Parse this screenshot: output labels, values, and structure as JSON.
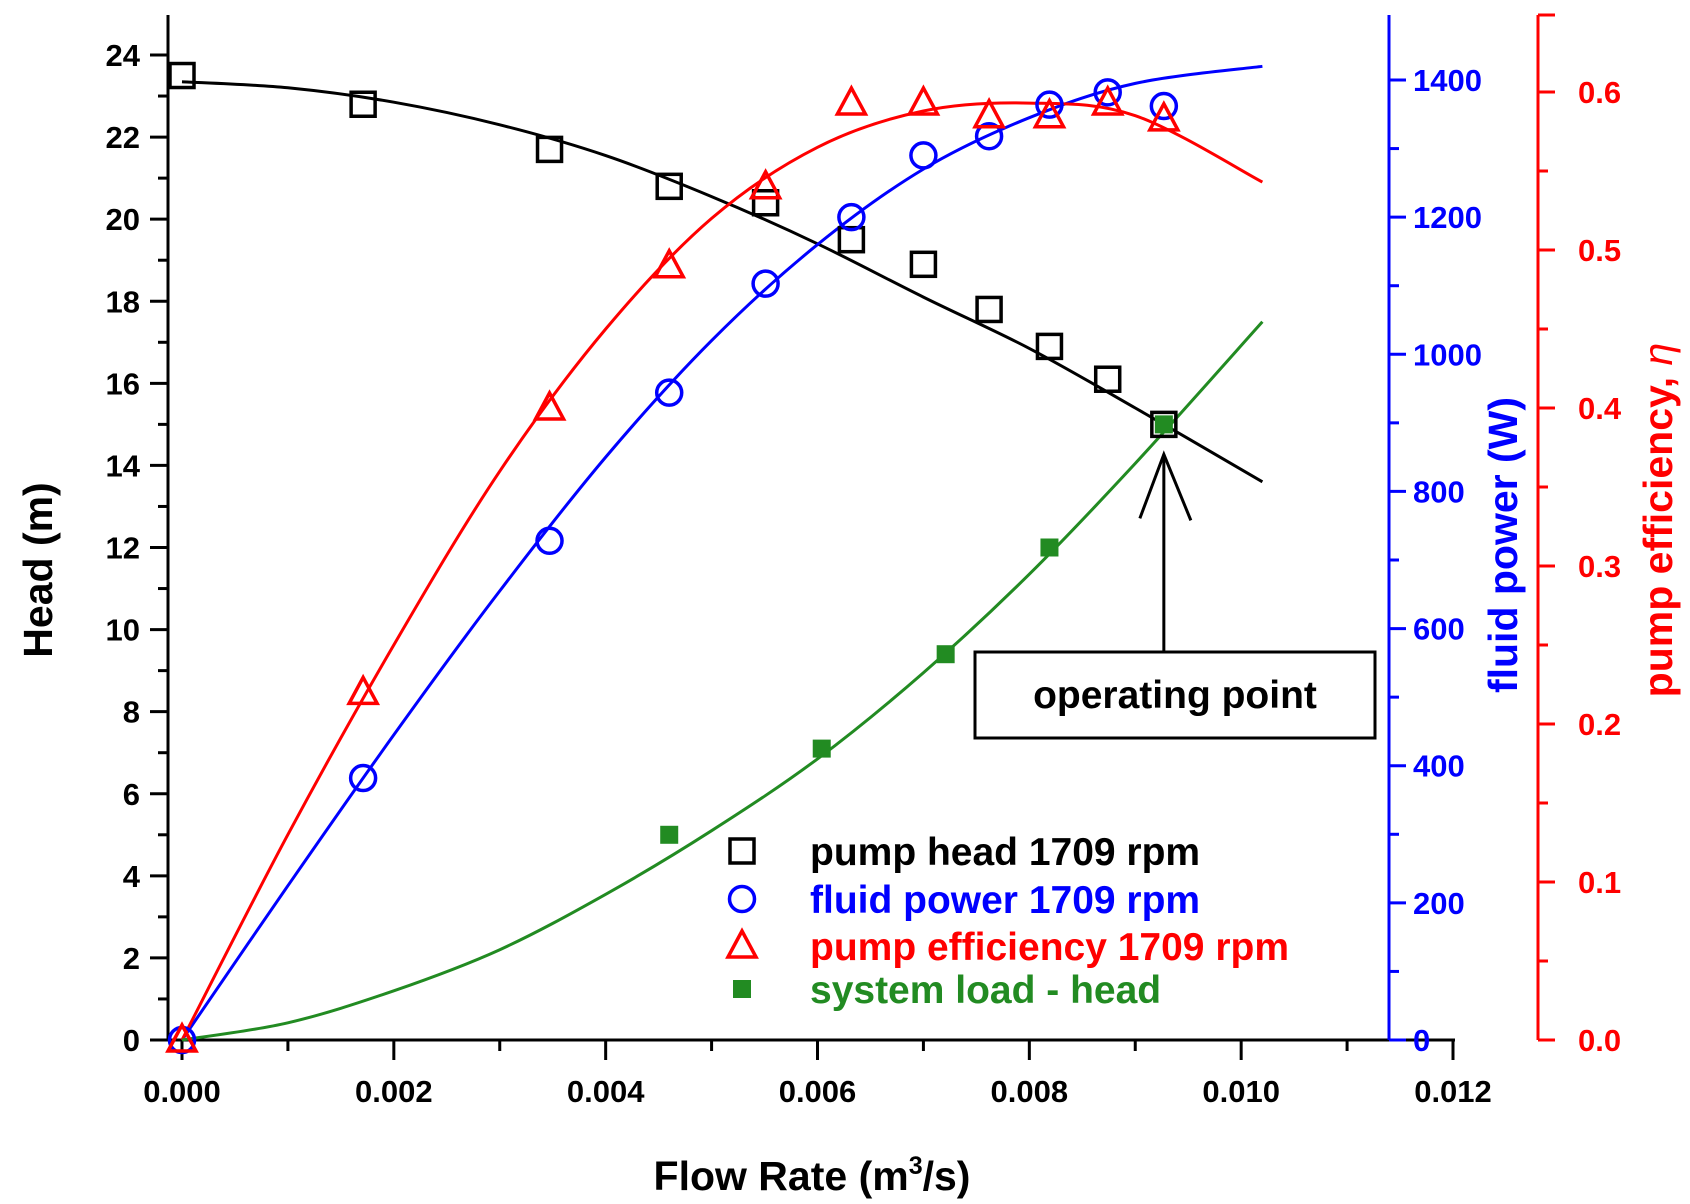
{
  "chart_data": {
    "type": "scatter",
    "xlabel": "Flow Rate (m³/s)",
    "xlabel_main": "Flow Rate (m",
    "xlabel_sup": "3",
    "xlabel_end": "/s)",
    "xlim": [
      0,
      0.012
    ],
    "x_ticks": [
      "0.000",
      "0.002",
      "0.004",
      "0.006",
      "0.008",
      "0.010",
      "0.012"
    ],
    "y_axes": [
      {
        "id": "head",
        "label": "Head (m)",
        "color": "#000000",
        "lim": [
          0,
          24
        ],
        "ticks": [
          "0",
          "2",
          "4",
          "6",
          "8",
          "10",
          "12",
          "14",
          "16",
          "18",
          "20",
          "22",
          "24"
        ]
      },
      {
        "id": "power",
        "label": "fluid power (W)",
        "color": "#0000ff",
        "lim": [
          0,
          1400
        ],
        "ticks": [
          "0",
          "200",
          "400",
          "600",
          "800",
          "1000",
          "1200",
          "1400"
        ]
      },
      {
        "id": "eta",
        "label": "pump efficiency, η",
        "label_main": "pump efficiency, ",
        "label_symbol": "η",
        "color": "#ff0000",
        "lim": [
          0,
          0.6
        ],
        "ticks": [
          "0.0",
          "0.1",
          "0.2",
          "0.3",
          "0.4",
          "0.5",
          "0.6"
        ]
      }
    ],
    "series": [
      {
        "name": "pump head 1709 rpm",
        "axis": "head",
        "marker": "open-square",
        "color": "#000000",
        "x": [
          0.0,
          0.00171,
          0.00347,
          0.0046,
          0.00551,
          0.00632,
          0.007,
          0.00762,
          0.00819,
          0.00874,
          0.00927
        ],
        "y": [
          23.5,
          22.8,
          21.7,
          20.8,
          20.4,
          19.5,
          18.9,
          17.8,
          16.9,
          16.1,
          15.0
        ],
        "fit_x": [
          0.0,
          0.001,
          0.002,
          0.003,
          0.004,
          0.005,
          0.006,
          0.007,
          0.008,
          0.009,
          0.0102
        ],
        "fit_y": [
          23.35,
          23.2,
          22.85,
          22.3,
          21.55,
          20.55,
          19.4,
          18.1,
          16.85,
          15.4,
          13.6
        ]
      },
      {
        "name": "fluid power 1709 rpm",
        "axis": "power",
        "marker": "open-circle",
        "color": "#0000ff",
        "x": [
          0.0,
          0.00171,
          0.00347,
          0.0046,
          0.00551,
          0.00632,
          0.007,
          0.00762,
          0.00819,
          0.00874,
          0.00927
        ],
        "y": [
          0,
          382,
          728,
          944,
          1103,
          1200,
          1290,
          1318,
          1364,
          1382,
          1362
        ],
        "fit_x": [
          0.0,
          0.001,
          0.002,
          0.003,
          0.004,
          0.005,
          0.006,
          0.007,
          0.008,
          0.009,
          0.0102
        ],
        "fit_y": [
          0,
          225,
          445,
          655,
          850,
          1020,
          1160,
          1270,
          1345,
          1395,
          1420
        ]
      },
      {
        "name": "pump efficiency 1709 rpm",
        "axis": "eta",
        "marker": "open-triangle",
        "color": "#ff0000",
        "x": [
          0.0,
          0.00171,
          0.00347,
          0.0046,
          0.00551,
          0.00632,
          0.007,
          0.00762,
          0.00819,
          0.00874,
          0.00927
        ],
        "y": [
          0.0,
          0.22,
          0.4,
          0.49,
          0.54,
          0.593,
          0.593,
          0.585,
          0.585,
          0.593,
          0.583
        ],
        "fit_x": [
          0.0,
          0.001,
          0.002,
          0.003,
          0.004,
          0.005,
          0.006,
          0.007,
          0.008,
          0.009,
          0.0102
        ],
        "fit_y": [
          0.0,
          0.13,
          0.25,
          0.36,
          0.45,
          0.52,
          0.565,
          0.588,
          0.593,
          0.585,
          0.543
        ]
      },
      {
        "name": "system load - head",
        "axis": "head",
        "marker": "filled-square",
        "color": "#228b22",
        "x": [
          0.0046,
          0.00604,
          0.00721,
          0.00819,
          0.00927
        ],
        "y": [
          5.0,
          7.1,
          9.4,
          12.0,
          15.0
        ],
        "fit_x": [
          0.0,
          0.001,
          0.002,
          0.003,
          0.004,
          0.005,
          0.006,
          0.007,
          0.008,
          0.009,
          0.0102
        ],
        "fit_y": [
          0.0,
          0.42,
          1.2,
          2.2,
          3.55,
          5.1,
          6.85,
          8.95,
          11.35,
          14.05,
          17.5
        ]
      }
    ],
    "legend": {
      "placement": "bottom-right",
      "entries": [
        "pump head 1709 rpm",
        "fluid power 1709 rpm",
        "pump efficiency 1709 rpm",
        "system load - head"
      ]
    },
    "annotation": {
      "text": "operating point",
      "x": 0.00927,
      "y": 15.0,
      "axis": "head"
    },
    "grid": false
  }
}
